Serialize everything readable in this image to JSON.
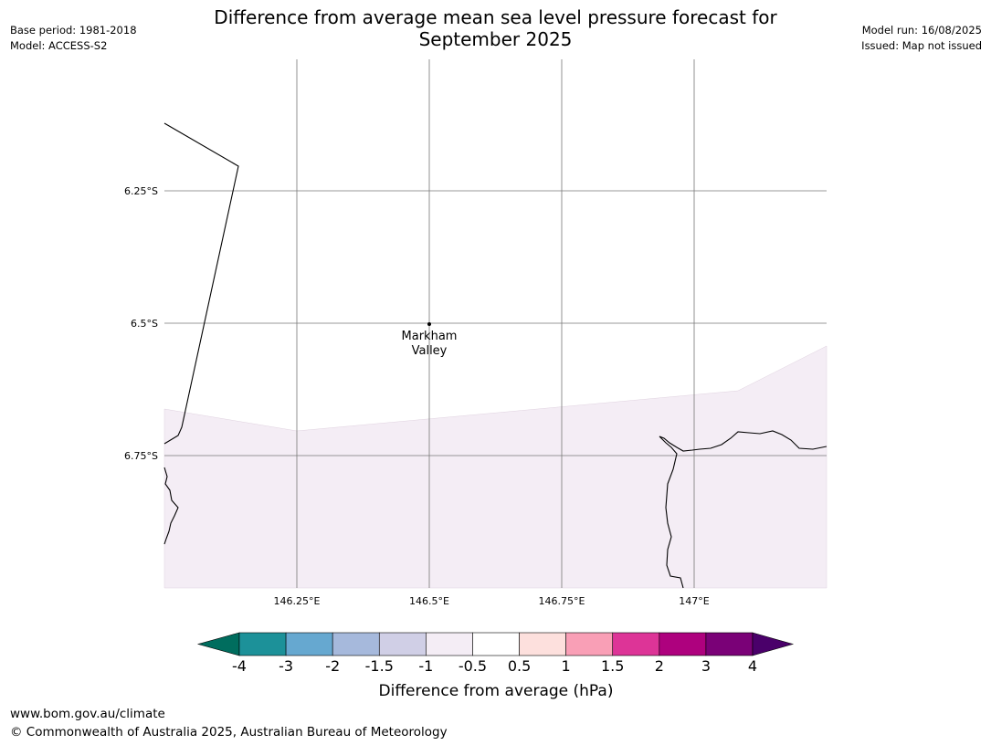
{
  "header": {
    "title_line1": "Difference from average mean sea level pressure forecast for",
    "title_line2": "September 2025",
    "base_period": "Base period: 1981-2018",
    "model": "Model: ACCESS-S2",
    "model_run": "Model run: 16/08/2025",
    "issued": "Issued: Map not issued"
  },
  "map": {
    "lon_ticks": [
      {
        "value": 146.25,
        "label": "146.25°E"
      },
      {
        "value": 146.5,
        "label": "146.5°E"
      },
      {
        "value": 146.75,
        "label": "146.75°E"
      },
      {
        "value": 147.0,
        "label": "147°E"
      }
    ],
    "lat_ticks": [
      {
        "value": -6.25,
        "label": "6.25°S"
      },
      {
        "value": -6.5,
        "label": "6.5°S"
      },
      {
        "value": -6.75,
        "label": "6.75°S"
      }
    ],
    "places": [
      {
        "name_line1": "Markham",
        "name_line2": "Valley",
        "lon": 146.5,
        "lat": -6.5
      }
    ],
    "shaded_category": "-1 to -0.5",
    "shaded_color": "#f4edf5"
  },
  "colorbar": {
    "title": "Difference from average (hPa)",
    "ticks": [
      "-4",
      "-3",
      "-2",
      "-1.5",
      "-1",
      "-0.5",
      "0.5",
      "1",
      "1.5",
      "2",
      "3",
      "4"
    ],
    "under_color": "#006d5e",
    "over_color": "#4a006a",
    "colors": [
      "#1c9199",
      "#66a8d0",
      "#a6b9dc",
      "#d0cfe6",
      "#f4edf5",
      "#ffffff",
      "#fde0dd",
      "#f99fb6",
      "#dd3497",
      "#ae017e",
      "#7a0177"
    ]
  },
  "footer": {
    "url": "www.bom.gov.au/climate",
    "copyright": "© Commonwealth of Australia 2025, Australian Bureau of Meteorology"
  }
}
